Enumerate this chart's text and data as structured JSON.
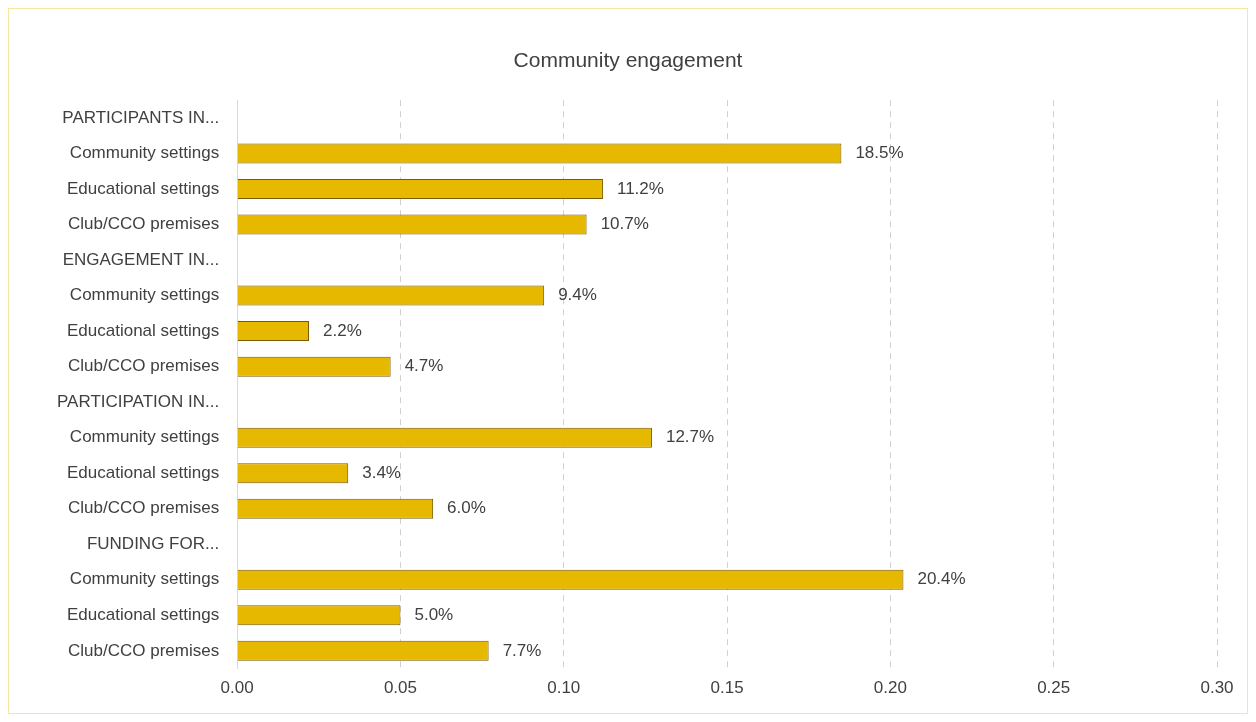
{
  "chart_data": {
    "type": "bar",
    "orientation": "horizontal",
    "title": "Community engagement",
    "categories": [
      "PARTICIPANTS IN...",
      "Community settings",
      "Educational settings",
      "Club/CCO premises",
      "ENGAGEMENT IN...",
      "Community settings",
      "Educational settings",
      "Club/CCO premises",
      "PARTICIPATION IN...",
      "Community settings",
      "Educational settings",
      "Club/CCO premises",
      "FUNDING FOR...",
      "Community settings",
      "Educational settings",
      "Club/CCO premises"
    ],
    "values": [
      null,
      0.185,
      0.112,
      0.107,
      null,
      0.094,
      0.022,
      0.047,
      null,
      0.127,
      0.034,
      0.06,
      null,
      0.204,
      0.05,
      0.077
    ],
    "value_labels": [
      null,
      "18.5%",
      "11.2%",
      "10.7%",
      null,
      "9.4%",
      "2.2%",
      "4.7%",
      null,
      "12.7%",
      "3.4%",
      "6.0%",
      null,
      "20.4%",
      "5.0%",
      "7.7%"
    ],
    "color": "#e6b800",
    "xlim": [
      0,
      0.3
    ],
    "xticks": [
      {
        "value": 0,
        "label": "0.00"
      },
      {
        "value": 0.05,
        "label": "0.05"
      },
      {
        "value": 0.1,
        "label": "0.10"
      },
      {
        "value": 0.15,
        "label": "0.15"
      },
      {
        "value": 0.2,
        "label": "0.20"
      },
      {
        "value": 0.25,
        "label": "0.25"
      },
      {
        "value": 0.3,
        "label": "0.30"
      }
    ],
    "grid": "x",
    "line_style": "dashed"
  }
}
